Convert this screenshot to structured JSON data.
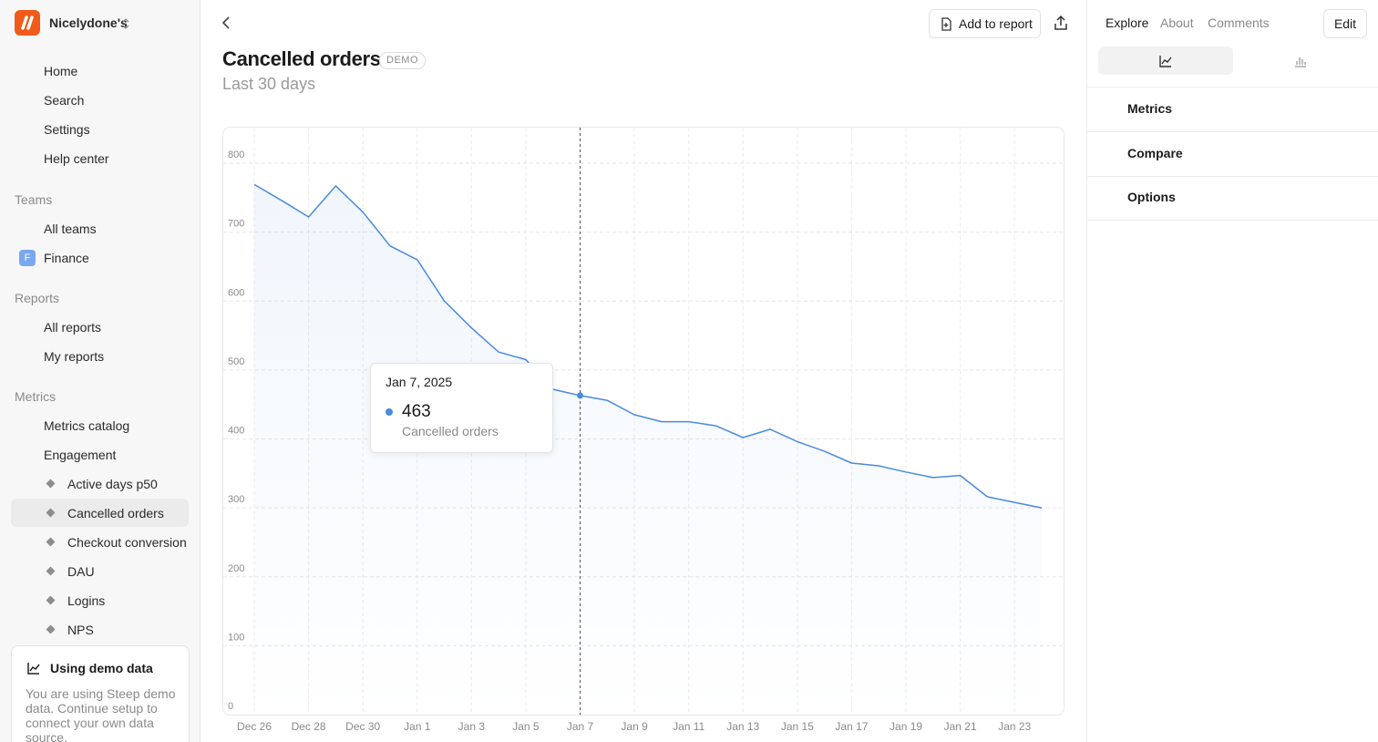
{
  "sidebar": {
    "workspace": "Nicelydone's",
    "nav": [
      "Home",
      "Search",
      "Settings",
      "Help center"
    ],
    "sections": [
      {
        "title": "Teams",
        "items": [
          "All teams",
          "Finance"
        ]
      },
      {
        "title": "Reports",
        "items": [
          "All reports",
          "My reports"
        ]
      },
      {
        "title": "Metrics",
        "items": [
          "Metrics catalog",
          "Engagement"
        ]
      }
    ],
    "team_avatar": "F",
    "engagement_items": [
      "Active days p50",
      "Cancelled orders",
      "Checkout conversion",
      "DAU",
      "Logins",
      "NPS"
    ],
    "demo_card": {
      "title": "Using demo data",
      "text": "You are using Steep demo data. Continue setup to connect your own data source."
    }
  },
  "header": {
    "add_to_report": "Add to report",
    "title": "Cancelled orders",
    "badge": "DEMO",
    "subtitle": "Last 30 days"
  },
  "right_panel": {
    "tabs": [
      "Explore",
      "About",
      "Comments"
    ],
    "edit": "Edit",
    "sections": [
      "Metrics",
      "Compare",
      "Options"
    ]
  },
  "chart_data": {
    "type": "line",
    "categories": [
      "Dec 26",
      null,
      "Dec 28",
      null,
      "Dec 30",
      null,
      "Jan 1",
      null,
      "Jan 3",
      null,
      "Jan 5",
      null,
      "Jan 7",
      null,
      "Jan 9",
      null,
      "Jan 11",
      null,
      "Jan 13",
      null,
      "Jan 15",
      null,
      "Jan 17",
      null,
      "Jan 19",
      null,
      "Jan 21",
      null,
      "Jan 23",
      null
    ],
    "series": [
      {
        "name": "Cancelled orders",
        "color": "#4a8ae0",
        "values": [
          769,
          746,
          722,
          767,
          729,
          680,
          660,
          600,
          561,
          526,
          515,
          472,
          463,
          456,
          435,
          425,
          425,
          419,
          402,
          414,
          396,
          382,
          365,
          361,
          352,
          344,
          347,
          316,
          308,
          300
        ]
      }
    ],
    "ylim": [
      0,
      800
    ],
    "yticks": [
      0,
      100,
      200,
      300,
      400,
      500,
      600,
      700,
      800
    ],
    "grid": true,
    "tooltip": {
      "date": "Jan 7, 2025"
    }
  }
}
